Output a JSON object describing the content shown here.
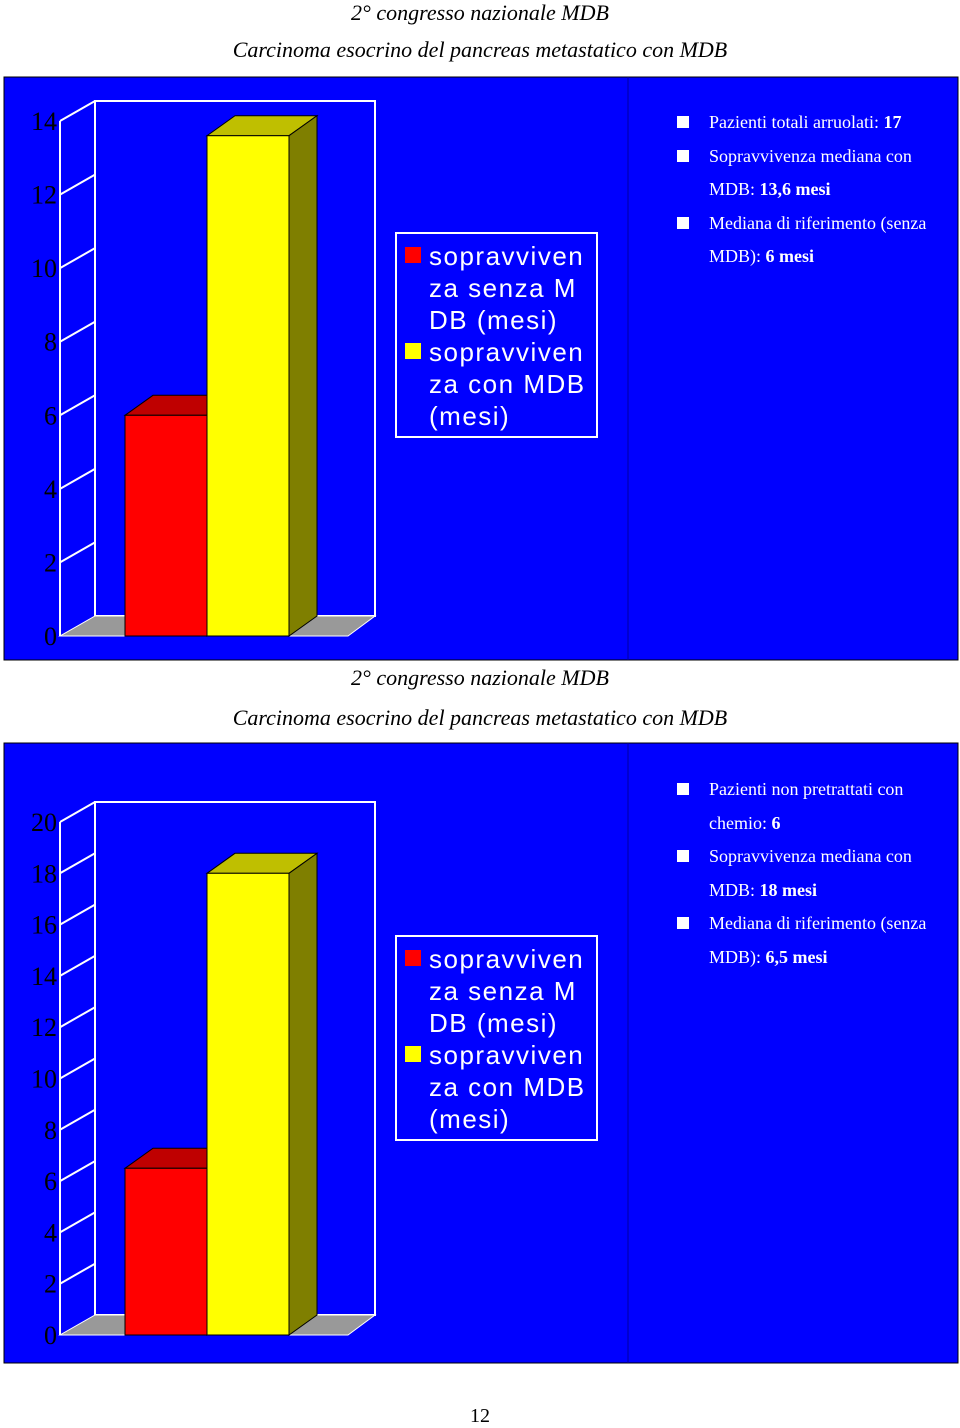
{
  "sections": [
    {
      "title": "2° congresso nazionale MDB",
      "subtitle": "Carcinoma esocrino del pancreas metastatico con MDB",
      "notes": [
        {
          "label": "Pazienti totali arruolati:",
          "value": "17"
        },
        {
          "label": "Sopravvivenza mediana con MDB:",
          "value": "13,6 mesi"
        },
        {
          "label": "Mediana di riferimento (senza MDB):",
          "value": "6 mesi"
        }
      ]
    },
    {
      "title": "2° congresso nazionale MDB",
      "subtitle": "Carcinoma esocrino del pancreas metastatico con MDB",
      "notes": [
        {
          "label": "Pazienti non pretrattati con chemio:",
          "value": "6"
        },
        {
          "label": "Sopravvivenza mediana con MDB:",
          "value": "18 mesi"
        },
        {
          "label": "Mediana di riferimento (senza MDB):",
          "value": "6,5 mesi"
        }
      ]
    }
  ],
  "chart_data": [
    {
      "type": "bar3d",
      "series": [
        {
          "name": "sopravvivenza senza MDB (mesi)",
          "color": "#ff0000",
          "values": [
            6
          ]
        },
        {
          "name": "sopravvivenza con MDB (mesi)",
          "color": "#ffff00",
          "values": [
            13.6
          ]
        }
      ],
      "ylim": [
        0,
        14
      ],
      "yticks": [
        0,
        2,
        4,
        6,
        8,
        10,
        12,
        14
      ],
      "grid": true
    },
    {
      "type": "bar3d",
      "series": [
        {
          "name": "sopravvivenza senza MDB (mesi)",
          "color": "#ff0000",
          "values": [
            6.5
          ]
        },
        {
          "name": "sopravvivenza con MDB (mesi)",
          "color": "#ffff00",
          "values": [
            18
          ]
        }
      ],
      "ylim": [
        0,
        20
      ],
      "yticks": [
        0,
        2,
        4,
        6,
        8,
        10,
        12,
        14,
        16,
        18,
        20
      ],
      "grid": true
    }
  ],
  "page_number": "12"
}
